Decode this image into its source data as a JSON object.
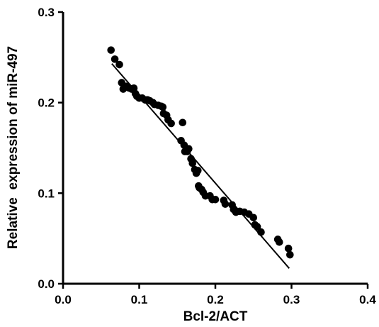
{
  "chart_data": {
    "type": "scatter",
    "xlabel": "Bcl-2/ACT",
    "ylabel": "Relative  expression of miR-497",
    "xlim": [
      0.0,
      0.4
    ],
    "ylim": [
      0.0,
      0.3
    ],
    "x_ticks": [
      "0.0",
      "0.1",
      "0.2",
      "0.3",
      "0.4"
    ],
    "y_ticks": [
      "0.0",
      "0.1",
      "0.2",
      "0.3"
    ],
    "grid": false,
    "legend": "none",
    "point_color": "#000000",
    "points": [
      [
        0.063,
        0.258
      ],
      [
        0.068,
        0.248
      ],
      [
        0.074,
        0.242
      ],
      [
        0.077,
        0.222
      ],
      [
        0.079,
        0.215
      ],
      [
        0.083,
        0.218
      ],
      [
        0.087,
        0.216
      ],
      [
        0.09,
        0.215
      ],
      [
        0.093,
        0.216
      ],
      [
        0.095,
        0.21
      ],
      [
        0.097,
        0.207
      ],
      [
        0.1,
        0.205
      ],
      [
        0.104,
        0.205
      ],
      [
        0.108,
        0.203
      ],
      [
        0.111,
        0.203
      ],
      [
        0.114,
        0.202
      ],
      [
        0.118,
        0.2
      ],
      [
        0.12,
        0.198
      ],
      [
        0.125,
        0.197
      ],
      [
        0.129,
        0.196
      ],
      [
        0.131,
        0.195
      ],
      [
        0.132,
        0.188
      ],
      [
        0.136,
        0.186
      ],
      [
        0.138,
        0.181
      ],
      [
        0.142,
        0.177
      ],
      [
        0.155,
        0.158
      ],
      [
        0.157,
        0.178
      ],
      [
        0.159,
        0.153
      ],
      [
        0.16,
        0.146
      ],
      [
        0.163,
        0.146
      ],
      [
        0.165,
        0.149
      ],
      [
        0.168,
        0.138
      ],
      [
        0.17,
        0.133
      ],
      [
        0.173,
        0.126
      ],
      [
        0.175,
        0.122
      ],
      [
        0.177,
        0.125
      ],
      [
        0.178,
        0.108
      ],
      [
        0.179,
        0.106
      ],
      [
        0.182,
        0.104
      ],
      [
        0.184,
        0.101
      ],
      [
        0.187,
        0.097
      ],
      [
        0.193,
        0.097
      ],
      [
        0.196,
        0.093
      ],
      [
        0.2,
        0.093
      ],
      [
        0.211,
        0.092
      ],
      [
        0.213,
        0.088
      ],
      [
        0.222,
        0.087
      ],
      [
        0.224,
        0.082
      ],
      [
        0.227,
        0.079
      ],
      [
        0.232,
        0.08
      ],
      [
        0.238,
        0.079
      ],
      [
        0.244,
        0.077
      ],
      [
        0.25,
        0.073
      ],
      [
        0.252,
        0.065
      ],
      [
        0.255,
        0.063
      ],
      [
        0.26,
        0.057
      ],
      [
        0.282,
        0.049
      ],
      [
        0.284,
        0.046
      ],
      [
        0.296,
        0.039
      ],
      [
        0.298,
        0.032
      ]
    ],
    "fit_line": {
      "x": [
        0.064,
        0.297
      ],
      "y": [
        0.243,
        0.017
      ]
    }
  }
}
